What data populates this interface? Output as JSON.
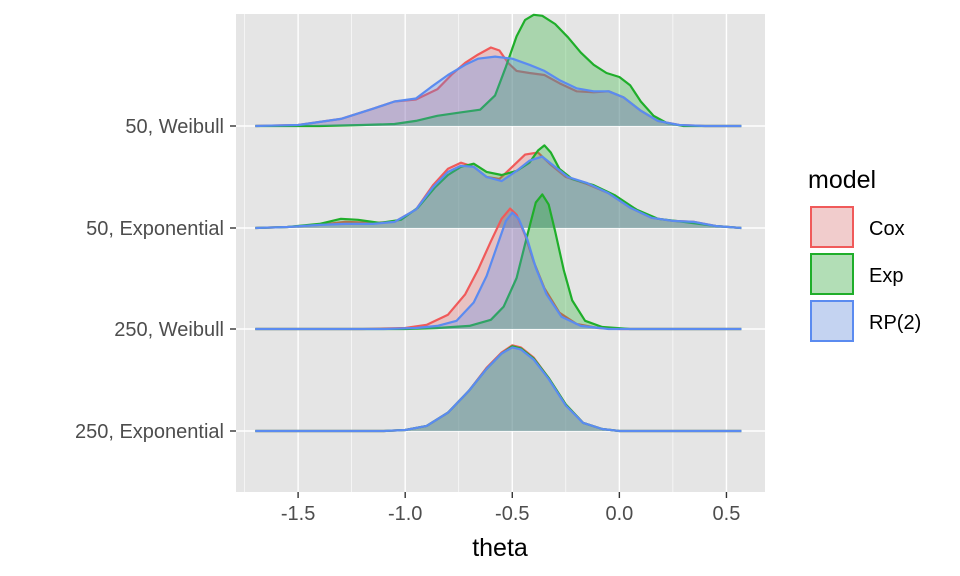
{
  "chart_data": {
    "type": "ridgeline-density",
    "xlabel": "theta",
    "ylabel": "",
    "xlim": [
      -1.79,
      0.68
    ],
    "x_ticks": [
      -1.5,
      -1.0,
      -0.5,
      0.0,
      0.5
    ],
    "x_tick_labels": [
      "-1.5",
      "-1.0",
      "-0.5",
      "0.0",
      "0.5"
    ],
    "legend_title": "model",
    "legend_position": "right",
    "grid": true,
    "colors": {
      "panel": "#e5e5e5",
      "grid": "#ffffff",
      "Cox": "#f05a5a",
      "Exp": "#1fae2a",
      "RP(2)": "#5b8bf0"
    },
    "series": [
      {
        "name": "Cox",
        "color": "#f05a5a",
        "fill": "rgba(240,90,90,0.25)"
      },
      {
        "name": "Exp",
        "color": "#1fae2a",
        "fill": "rgba(31,174,42,0.30)"
      },
      {
        "name": "RP(2)",
        "color": "#5b8bf0",
        "fill": "rgba(91,139,240,0.30)"
      }
    ],
    "rows": [
      {
        "label": "50, Weibull",
        "densities": {
          "Cox": [
            [
              -1.7,
              0
            ],
            [
              -1.5,
              0.01
            ],
            [
              -1.3,
              0.07
            ],
            [
              -1.15,
              0.17
            ],
            [
              -1.05,
              0.24
            ],
            [
              -0.95,
              0.26
            ],
            [
              -0.85,
              0.36
            ],
            [
              -0.78,
              0.51
            ],
            [
              -0.72,
              0.62
            ],
            [
              -0.66,
              0.7
            ],
            [
              -0.6,
              0.77
            ],
            [
              -0.56,
              0.74
            ],
            [
              -0.52,
              0.62
            ],
            [
              -0.48,
              0.54
            ],
            [
              -0.42,
              0.52
            ],
            [
              -0.35,
              0.5
            ],
            [
              -0.28,
              0.42
            ],
            [
              -0.2,
              0.34
            ],
            [
              -0.12,
              0.33
            ],
            [
              -0.05,
              0.34
            ],
            [
              0.02,
              0.28
            ],
            [
              0.1,
              0.15
            ],
            [
              0.18,
              0.05
            ],
            [
              0.28,
              0.01
            ],
            [
              0.4,
              0
            ],
            [
              0.57,
              0
            ]
          ],
          "Exp": [
            [
              -1.7,
              0
            ],
            [
              -1.4,
              0
            ],
            [
              -1.2,
              0.01
            ],
            [
              -1.05,
              0.02
            ],
            [
              -0.95,
              0.05
            ],
            [
              -0.85,
              0.1
            ],
            [
              -0.75,
              0.13
            ],
            [
              -0.65,
              0.16
            ],
            [
              -0.58,
              0.3
            ],
            [
              -0.53,
              0.58
            ],
            [
              -0.48,
              0.88
            ],
            [
              -0.44,
              1.04
            ],
            [
              -0.4,
              1.09
            ],
            [
              -0.36,
              1.08
            ],
            [
              -0.3,
              1.0
            ],
            [
              -0.24,
              0.87
            ],
            [
              -0.18,
              0.72
            ],
            [
              -0.12,
              0.6
            ],
            [
              -0.06,
              0.52
            ],
            [
              0.0,
              0.48
            ],
            [
              0.05,
              0.4
            ],
            [
              0.1,
              0.24
            ],
            [
              0.16,
              0.1
            ],
            [
              0.22,
              0.03
            ],
            [
              0.3,
              0
            ],
            [
              0.57,
              0
            ]
          ],
          "RP(2)": [
            [
              -1.7,
              0
            ],
            [
              -1.5,
              0.01
            ],
            [
              -1.3,
              0.07
            ],
            [
              -1.15,
              0.17
            ],
            [
              -1.05,
              0.24
            ],
            [
              -0.95,
              0.27
            ],
            [
              -0.88,
              0.38
            ],
            [
              -0.8,
              0.5
            ],
            [
              -0.72,
              0.6
            ],
            [
              -0.66,
              0.66
            ],
            [
              -0.58,
              0.68
            ],
            [
              -0.5,
              0.66
            ],
            [
              -0.42,
              0.6
            ],
            [
              -0.35,
              0.54
            ],
            [
              -0.28,
              0.45
            ],
            [
              -0.2,
              0.37
            ],
            [
              -0.12,
              0.34
            ],
            [
              -0.05,
              0.34
            ],
            [
              0.02,
              0.28
            ],
            [
              0.1,
              0.15
            ],
            [
              0.18,
              0.05
            ],
            [
              0.28,
              0.01
            ],
            [
              0.4,
              0
            ],
            [
              0.57,
              0
            ]
          ]
        }
      },
      {
        "label": "50, Exponential",
        "densities": {
          "Cox": [
            [
              -1.7,
              0
            ],
            [
              -1.55,
              0.01
            ],
            [
              -1.4,
              0.03
            ],
            [
              -1.28,
              0.06
            ],
            [
              -1.15,
              0.05
            ],
            [
              -1.05,
              0.06
            ],
            [
              -0.95,
              0.18
            ],
            [
              -0.87,
              0.42
            ],
            [
              -0.8,
              0.58
            ],
            [
              -0.74,
              0.64
            ],
            [
              -0.68,
              0.6
            ],
            [
              -0.62,
              0.5
            ],
            [
              -0.56,
              0.48
            ],
            [
              -0.5,
              0.6
            ],
            [
              -0.44,
              0.72
            ],
            [
              -0.38,
              0.74
            ],
            [
              -0.32,
              0.62
            ],
            [
              -0.25,
              0.5
            ],
            [
              -0.15,
              0.43
            ],
            [
              -0.05,
              0.34
            ],
            [
              0.05,
              0.2
            ],
            [
              0.15,
              0.1
            ],
            [
              0.25,
              0.07
            ],
            [
              0.35,
              0.06
            ],
            [
              0.45,
              0.02
            ],
            [
              0.57,
              0
            ]
          ],
          "Exp": [
            [
              -1.7,
              0
            ],
            [
              -1.55,
              0.01
            ],
            [
              -1.4,
              0.04
            ],
            [
              -1.3,
              0.09
            ],
            [
              -1.22,
              0.08
            ],
            [
              -1.12,
              0.05
            ],
            [
              -1.02,
              0.08
            ],
            [
              -0.94,
              0.2
            ],
            [
              -0.86,
              0.4
            ],
            [
              -0.8,
              0.52
            ],
            [
              -0.74,
              0.6
            ],
            [
              -0.68,
              0.63
            ],
            [
              -0.62,
              0.55
            ],
            [
              -0.55,
              0.52
            ],
            [
              -0.48,
              0.56
            ],
            [
              -0.42,
              0.64
            ],
            [
              -0.38,
              0.76
            ],
            [
              -0.35,
              0.81
            ],
            [
              -0.32,
              0.74
            ],
            [
              -0.28,
              0.58
            ],
            [
              -0.22,
              0.48
            ],
            [
              -0.12,
              0.42
            ],
            [
              -0.02,
              0.32
            ],
            [
              0.08,
              0.18
            ],
            [
              0.18,
              0.09
            ],
            [
              0.3,
              0.06
            ],
            [
              0.45,
              0.02
            ],
            [
              0.57,
              0
            ]
          ],
          "RP(2)": [
            [
              -1.7,
              0
            ],
            [
              -1.55,
              0.01
            ],
            [
              -1.4,
              0.03
            ],
            [
              -1.28,
              0.04
            ],
            [
              -1.15,
              0.04
            ],
            [
              -1.05,
              0.06
            ],
            [
              -0.95,
              0.18
            ],
            [
              -0.87,
              0.4
            ],
            [
              -0.8,
              0.55
            ],
            [
              -0.74,
              0.61
            ],
            [
              -0.68,
              0.6
            ],
            [
              -0.62,
              0.5
            ],
            [
              -0.55,
              0.46
            ],
            [
              -0.48,
              0.56
            ],
            [
              -0.42,
              0.66
            ],
            [
              -0.36,
              0.7
            ],
            [
              -0.3,
              0.6
            ],
            [
              -0.24,
              0.5
            ],
            [
              -0.15,
              0.44
            ],
            [
              -0.05,
              0.34
            ],
            [
              0.05,
              0.2
            ],
            [
              0.15,
              0.1
            ],
            [
              0.25,
              0.07
            ],
            [
              0.35,
              0.06
            ],
            [
              0.45,
              0.02
            ],
            [
              0.57,
              0
            ]
          ]
        }
      },
      {
        "label": "250, Weibull",
        "densities": {
          "Cox": [
            [
              -1.7,
              0
            ],
            [
              -1.2,
              0
            ],
            [
              -1.0,
              0.01
            ],
            [
              -0.9,
              0.04
            ],
            [
              -0.8,
              0.14
            ],
            [
              -0.72,
              0.34
            ],
            [
              -0.66,
              0.58
            ],
            [
              -0.6,
              0.86
            ],
            [
              -0.55,
              1.08
            ],
            [
              -0.51,
              1.18
            ],
            [
              -0.48,
              1.12
            ],
            [
              -0.44,
              0.92
            ],
            [
              -0.4,
              0.66
            ],
            [
              -0.35,
              0.4
            ],
            [
              -0.28,
              0.16
            ],
            [
              -0.2,
              0.05
            ],
            [
              -0.1,
              0.01
            ],
            [
              0.0,
              0
            ],
            [
              0.57,
              0
            ]
          ],
          "Exp": [
            [
              -1.7,
              0
            ],
            [
              -1.0,
              0
            ],
            [
              -0.85,
              0.01
            ],
            [
              -0.7,
              0.03
            ],
            [
              -0.6,
              0.09
            ],
            [
              -0.54,
              0.22
            ],
            [
              -0.48,
              0.5
            ],
            [
              -0.43,
              0.92
            ],
            [
              -0.39,
              1.24
            ],
            [
              -0.36,
              1.32
            ],
            [
              -0.33,
              1.22
            ],
            [
              -0.3,
              0.96
            ],
            [
              -0.26,
              0.58
            ],
            [
              -0.22,
              0.28
            ],
            [
              -0.16,
              0.08
            ],
            [
              -0.08,
              0.02
            ],
            [
              0.05,
              0
            ],
            [
              0.57,
              0
            ]
          ],
          "RP(2)": [
            [
              -1.7,
              0
            ],
            [
              -1.1,
              0
            ],
            [
              -0.95,
              0.01
            ],
            [
              -0.85,
              0.03
            ],
            [
              -0.76,
              0.08
            ],
            [
              -0.68,
              0.26
            ],
            [
              -0.62,
              0.52
            ],
            [
              -0.57,
              0.82
            ],
            [
              -0.53,
              1.06
            ],
            [
              -0.5,
              1.14
            ],
            [
              -0.47,
              1.08
            ],
            [
              -0.43,
              0.88
            ],
            [
              -0.39,
              0.6
            ],
            [
              -0.34,
              0.34
            ],
            [
              -0.27,
              0.12
            ],
            [
              -0.18,
              0.03
            ],
            [
              -0.05,
              0
            ],
            [
              0.57,
              0
            ]
          ]
        }
      },
      {
        "label": "250, Exponential",
        "densities": {
          "Cox": [
            [
              -1.7,
              0
            ],
            [
              -1.1,
              0
            ],
            [
              -1.0,
              0.01
            ],
            [
              -0.9,
              0.05
            ],
            [
              -0.8,
              0.18
            ],
            [
              -0.7,
              0.4
            ],
            [
              -0.62,
              0.62
            ],
            [
              -0.55,
              0.77
            ],
            [
              -0.5,
              0.84
            ],
            [
              -0.46,
              0.82
            ],
            [
              -0.4,
              0.72
            ],
            [
              -0.33,
              0.52
            ],
            [
              -0.25,
              0.26
            ],
            [
              -0.17,
              0.08
            ],
            [
              -0.08,
              0.02
            ],
            [
              0.0,
              0
            ],
            [
              0.57,
              0
            ]
          ],
          "Exp": [
            [
              -1.7,
              0
            ],
            [
              -1.1,
              0
            ],
            [
              -1.0,
              0.01
            ],
            [
              -0.9,
              0.05
            ],
            [
              -0.8,
              0.18
            ],
            [
              -0.7,
              0.4
            ],
            [
              -0.62,
              0.61
            ],
            [
              -0.55,
              0.76
            ],
            [
              -0.5,
              0.83
            ],
            [
              -0.46,
              0.81
            ],
            [
              -0.4,
              0.71
            ],
            [
              -0.33,
              0.52
            ],
            [
              -0.25,
              0.26
            ],
            [
              -0.17,
              0.08
            ],
            [
              -0.08,
              0.02
            ],
            [
              0.0,
              0
            ],
            [
              0.57,
              0
            ]
          ],
          "RP(2)": [
            [
              -1.7,
              0
            ],
            [
              -1.1,
              0
            ],
            [
              -1.0,
              0.01
            ],
            [
              -0.9,
              0.05
            ],
            [
              -0.8,
              0.18
            ],
            [
              -0.7,
              0.4
            ],
            [
              -0.62,
              0.61
            ],
            [
              -0.55,
              0.76
            ],
            [
              -0.5,
              0.82
            ],
            [
              -0.46,
              0.8
            ],
            [
              -0.4,
              0.7
            ],
            [
              -0.33,
              0.51
            ],
            [
              -0.25,
              0.25
            ],
            [
              -0.17,
              0.08
            ],
            [
              -0.08,
              0.02
            ],
            [
              0.0,
              0
            ],
            [
              0.57,
              0
            ]
          ]
        }
      }
    ]
  }
}
